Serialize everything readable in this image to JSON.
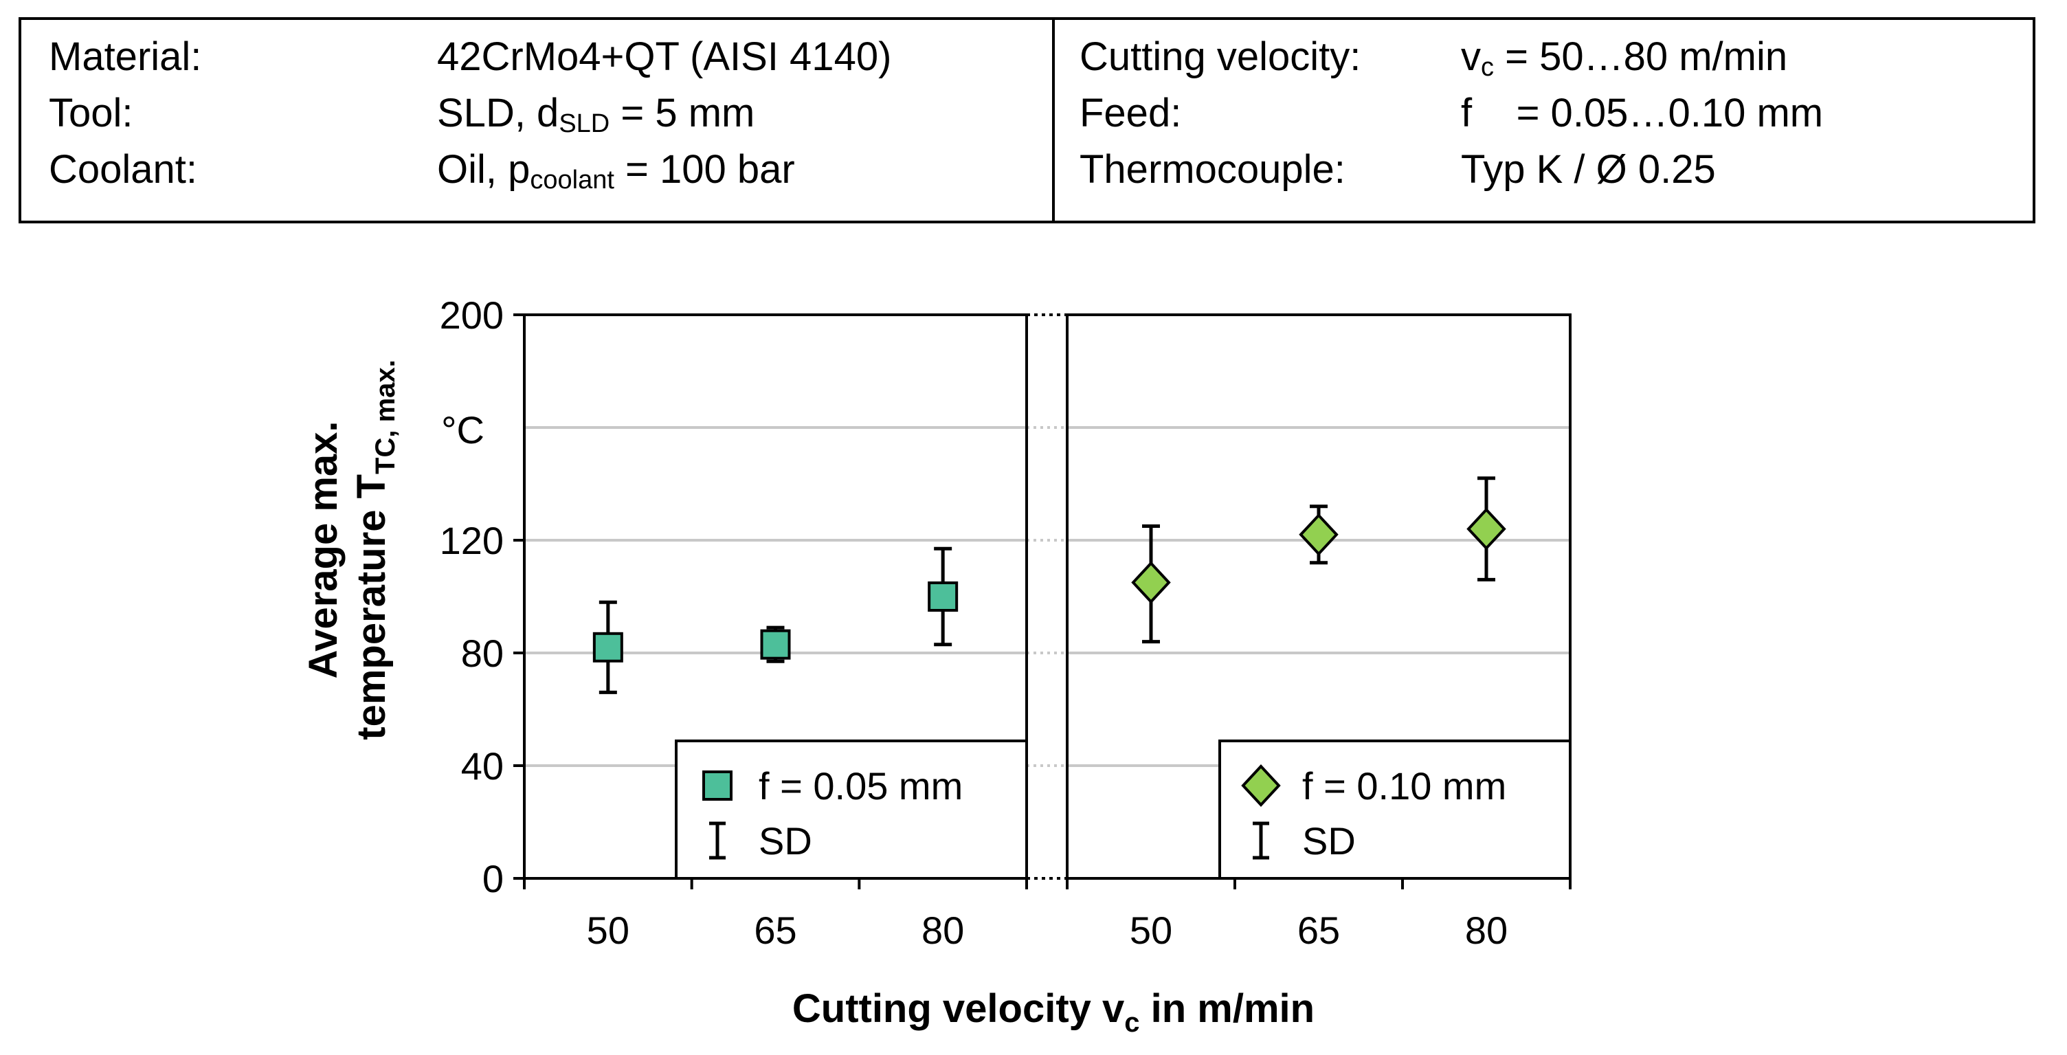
{
  "params": {
    "material_label": "Material:",
    "material_value": "42CrMo4+QT (AISI 4140)",
    "tool_label": "Tool:",
    "tool_value_prefix": "SLD, d",
    "tool_value_sub": "SLD",
    "tool_value_suffix": " = 5 mm",
    "coolant_label": "Coolant:",
    "coolant_value_prefix": "Oil, p",
    "coolant_value_sub": "coolant",
    "coolant_value_suffix": " = 100 bar",
    "velocity_label": "Cutting velocity:",
    "velocity_value_prefix": "v",
    "velocity_value_sub": "c",
    "velocity_value_suffix": " = 50…80 m/min",
    "feed_label": "Feed:",
    "feed_value": "f    = 0.05…0.10 mm",
    "thermocouple_label": "Thermocouple:",
    "thermocouple_value": "Typ K / Ø 0.25"
  },
  "chart_data": {
    "type": "scatter",
    "ylabel_line1": "Average max.",
    "ylabel_line2_main": "temperature T",
    "ylabel_line2_sub": "TC, max.",
    "yunit": "°C",
    "ylim": [
      0,
      200
    ],
    "yticks": [
      0,
      40,
      80,
      120,
      200
    ],
    "xlabel_main": "Cutting velocity v",
    "xlabel_sub": "c",
    "xlabel_suffix": " in m/min",
    "grid": true,
    "panels": [
      {
        "categories": [
          "50",
          "65",
          "80"
        ],
        "series": [
          {
            "name": "f = 0.05 mm",
            "marker": "square",
            "color": "#4dbf9a",
            "values": [
              82,
              83,
              100
            ],
            "sd_low": [
              66,
              77,
              83
            ],
            "sd_high": [
              98,
              89,
              117
            ]
          }
        ],
        "legend": {
          "series_label": "f = 0.05 mm",
          "sd_label": "SD",
          "position": "bottom-right"
        }
      },
      {
        "categories": [
          "50",
          "65",
          "80"
        ],
        "series": [
          {
            "name": "f = 0.10 mm",
            "marker": "diamond",
            "color": "#92d050",
            "values": [
              105,
              122,
              124
            ],
            "sd_low": [
              84,
              112,
              106
            ],
            "sd_high": [
              125,
              132,
              142
            ]
          }
        ],
        "legend": {
          "series_label": "f = 0.10 mm",
          "sd_label": "SD",
          "position": "bottom-right"
        }
      }
    ]
  }
}
